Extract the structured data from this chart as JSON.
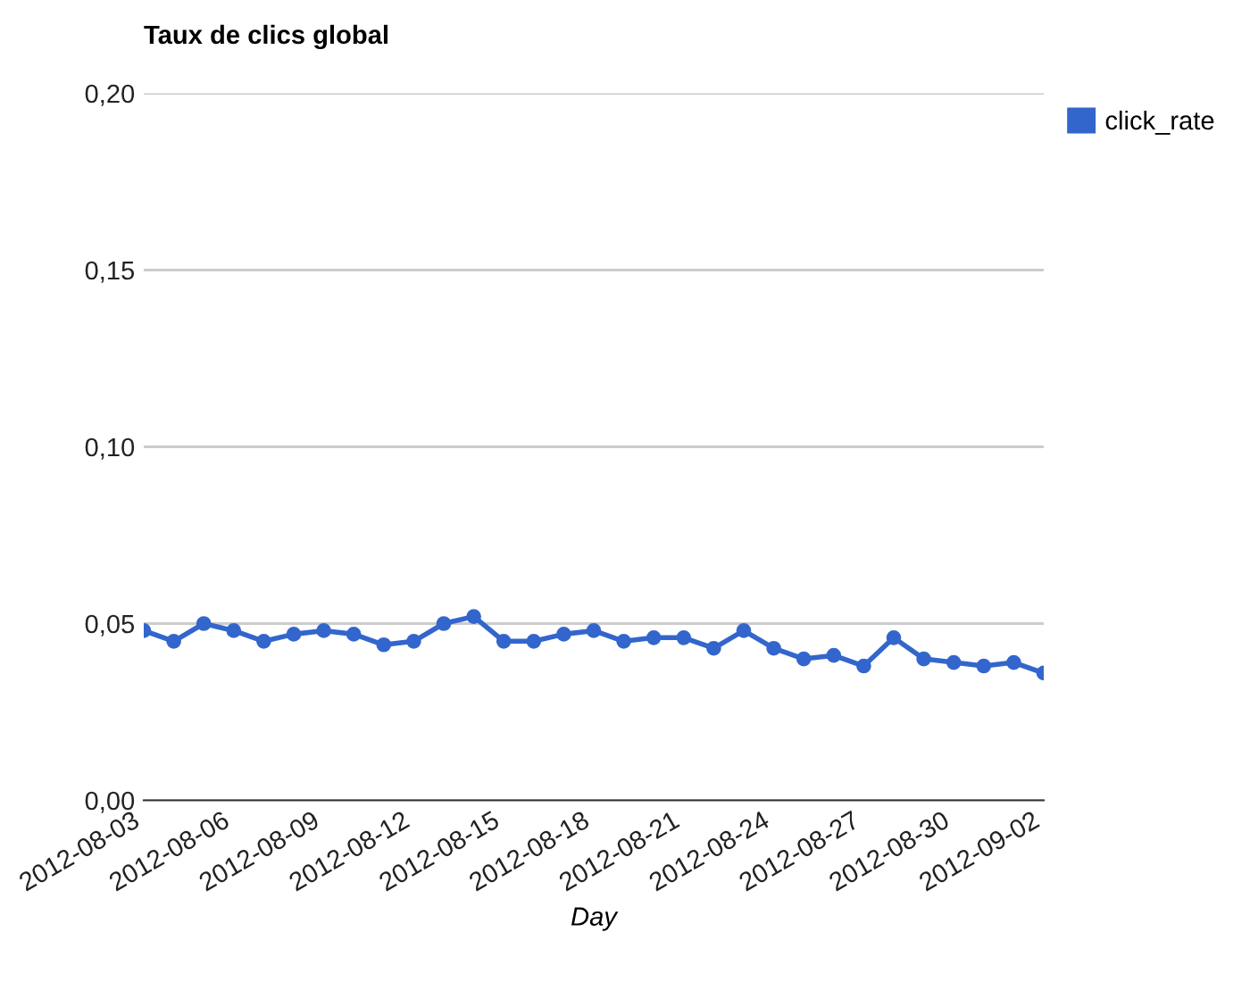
{
  "chart_data": {
    "type": "line",
    "title": "Taux de clics global",
    "xlabel": "Day",
    "x": [
      "2012-08-03",
      "2012-08-04",
      "2012-08-05",
      "2012-08-06",
      "2012-08-07",
      "2012-08-08",
      "2012-08-09",
      "2012-08-10",
      "2012-08-11",
      "2012-08-12",
      "2012-08-13",
      "2012-08-14",
      "2012-08-15",
      "2012-08-16",
      "2012-08-17",
      "2012-08-18",
      "2012-08-19",
      "2012-08-20",
      "2012-08-21",
      "2012-08-22",
      "2012-08-23",
      "2012-08-24",
      "2012-08-25",
      "2012-08-26",
      "2012-08-27",
      "2012-08-28",
      "2012-08-29",
      "2012-08-30",
      "2012-08-31",
      "2012-09-01",
      "2012-09-02"
    ],
    "series": [
      {
        "name": "click_rate",
        "color": "#3366cc",
        "values": [
          0.048,
          0.045,
          0.05,
          0.048,
          0.045,
          0.047,
          0.048,
          0.047,
          0.044,
          0.045,
          0.05,
          0.052,
          0.045,
          0.045,
          0.047,
          0.048,
          0.045,
          0.046,
          0.046,
          0.043,
          0.048,
          0.043,
          0.04,
          0.041,
          0.038,
          0.046,
          0.04,
          0.039,
          0.038,
          0.039,
          0.036
        ]
      }
    ],
    "xlim": [
      "2012-08-03",
      "2012-09-02"
    ],
    "xticks": [
      "2012-08-03",
      "2012-08-06",
      "2012-08-09",
      "2012-08-12",
      "2012-08-15",
      "2012-08-18",
      "2012-08-21",
      "2012-08-24",
      "2012-08-27",
      "2012-08-30",
      "2012-09-02"
    ],
    "ylim": [
      0,
      0.2
    ],
    "yticks": [
      {
        "value": 0,
        "label": "0,00"
      },
      {
        "value": 0.05,
        "label": "0,05"
      },
      {
        "value": 0.1,
        "label": "0,10"
      },
      {
        "value": 0.15,
        "label": "0,15"
      },
      {
        "value": 0.2,
        "label": "0,20"
      }
    ],
    "grid": "y",
    "legend": "top right",
    "marker": "circle",
    "line_style": "solid"
  }
}
